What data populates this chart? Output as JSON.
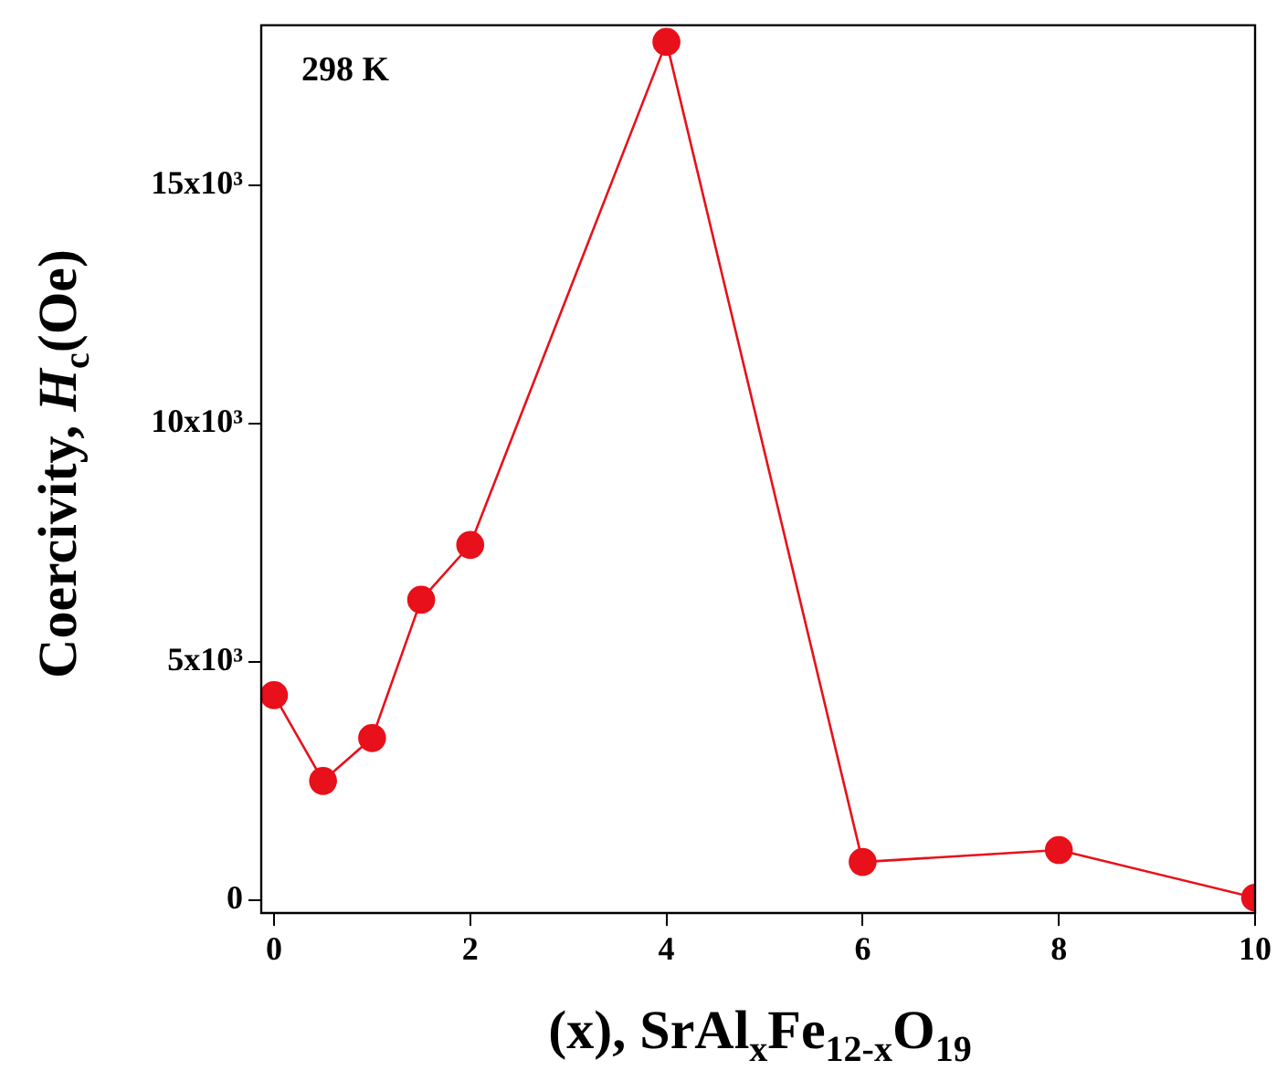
{
  "chart_data": {
    "type": "line",
    "xlabel": "(x), SrAl$_{x}$Fe$_{12-x}$O$_{19}$",
    "ylabel": "Coercivity, H$_{c}$(Oe)",
    "annotations": [
      "298 K"
    ],
    "x": [
      0,
      0.5,
      1,
      1.5,
      2,
      4,
      6,
      8,
      10
    ],
    "series": [
      {
        "color": "#e8101a",
        "values": [
          4300,
          2500,
          3400,
          6300,
          7450,
          18000,
          800,
          1050,
          50
        ]
      }
    ],
    "xlim": [
      -0.13,
      10
    ],
    "xticks": [
      0,
      2,
      4,
      6,
      8,
      10
    ],
    "ylim": [
      -270,
      18350
    ],
    "yticks": [
      {
        "value": 0,
        "label": "0"
      },
      {
        "value": 5000,
        "label": "5x10³"
      },
      {
        "value": 10000,
        "label": "10x10³"
      },
      {
        "value": 15000,
        "label": "15x10³"
      }
    ],
    "marker": "circle",
    "line_style": "solid"
  }
}
